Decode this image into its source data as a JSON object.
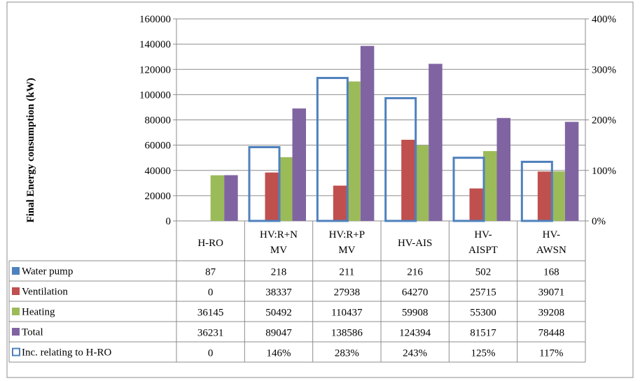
{
  "chart_data": {
    "type": "bar",
    "title": "",
    "ylabel": "Final Energy consumption (kW)",
    "ylim": [
      0,
      160000
    ],
    "y_ticks": [
      "160000",
      "140000",
      "120000",
      "100000",
      "80000",
      "60000",
      "40000",
      "20000",
      "0"
    ],
    "y2lim": [
      0,
      4
    ],
    "y2_ticks": [
      "400%",
      "300%",
      "200%",
      "100%",
      "0%"
    ],
    "grid": true,
    "legend": "data table",
    "categories": [
      [
        "H-RO"
      ],
      [
        "HV:R+N",
        "MV"
      ],
      [
        "HV:R+P",
        "MV"
      ],
      [
        "HV-AIS"
      ],
      [
        "HV-",
        "AISPT"
      ],
      [
        "HV-",
        "AWSN"
      ]
    ],
    "series": [
      {
        "name": "Water pump",
        "values": [
          87,
          218,
          211,
          216,
          502,
          168
        ],
        "labels": [
          "87",
          "218",
          "211",
          "216",
          "502",
          "168"
        ],
        "color": "#4f81bd",
        "kind": "bar",
        "axis": "left"
      },
      {
        "name": "Ventilation",
        "values": [
          0,
          38337,
          27938,
          64270,
          25715,
          39071
        ],
        "labels": [
          "0",
          "38337",
          "27938",
          "64270",
          "25715",
          "39071"
        ],
        "color": "#c0504d",
        "kind": "bar",
        "axis": "left"
      },
      {
        "name": "Heating",
        "values": [
          36145,
          50492,
          110437,
          59908,
          55300,
          39208
        ],
        "labels": [
          "36145",
          "50492",
          "110437",
          "59908",
          "55300",
          "39208"
        ],
        "color": "#9bbb59",
        "kind": "bar",
        "axis": "left"
      },
      {
        "name": "Total",
        "values": [
          36231,
          89047,
          138586,
          124394,
          81517,
          78448
        ],
        "labels": [
          "36231",
          "89047",
          "138586",
          "124394",
          "81517",
          "78448"
        ],
        "color": "#8064a2",
        "kind": "bar",
        "axis": "left"
      },
      {
        "name": "Inc. relating to H-RO",
        "values": [
          0,
          1.46,
          2.83,
          2.43,
          1.25,
          1.17
        ],
        "labels": [
          "0",
          "146%",
          "283%",
          "243%",
          "125%",
          "117%"
        ],
        "color": "#4f81bd",
        "kind": "outline",
        "axis": "right"
      }
    ]
  }
}
